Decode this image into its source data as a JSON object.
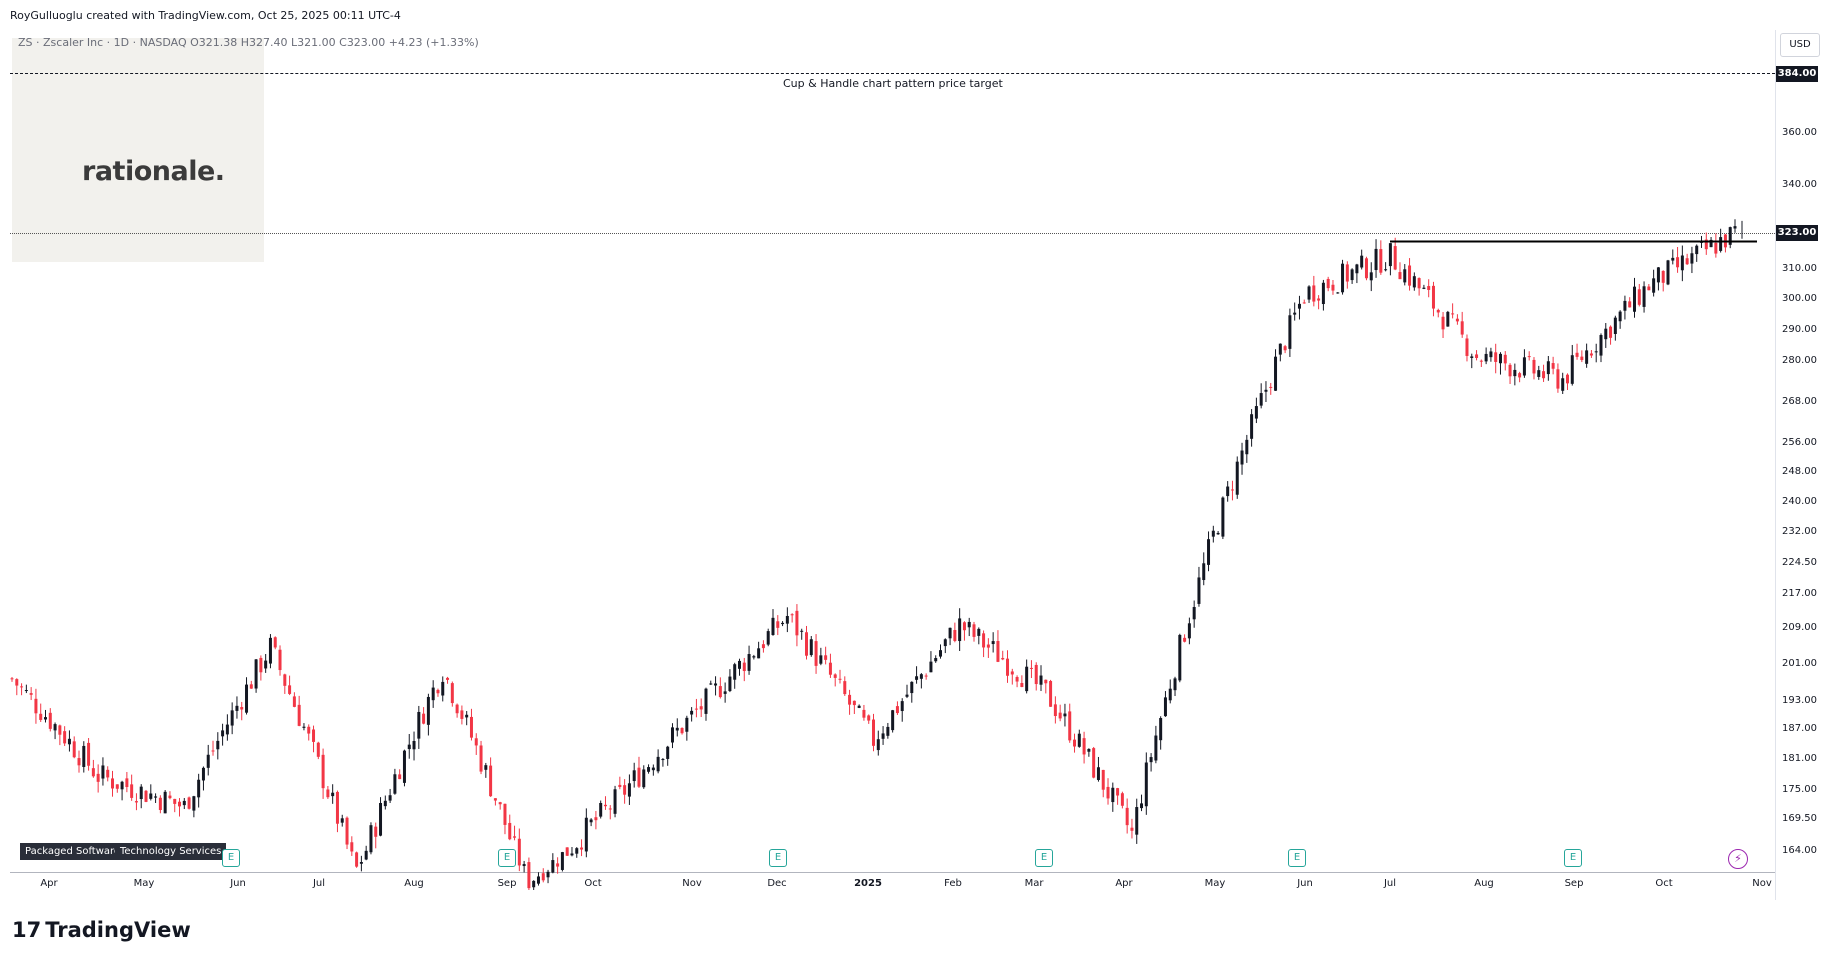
{
  "header": {
    "credit": "RoyGulluoglu created with TradingView.com, Oct 25, 2025 00:11 UTC-4",
    "symbol_line": "ZS · Zscaler Inc · 1D · NASDAQ  O321.38  H327.40  L321.00  C323.00  +4.23 (+1.33%)"
  },
  "logo": {
    "text": "rationale."
  },
  "currency": "USD",
  "annotation": {
    "target_text": "Cup & Handle chart pattern price target"
  },
  "sectors": [
    "Packaged Software",
    "Technology Services"
  ],
  "footer": {
    "brand": "TradingView",
    "brand_mark": "17"
  },
  "colors": {
    "up": "#131722",
    "down": "#f23645",
    "event": "#26a69a",
    "flash": "#9c27b0"
  },
  "events": [
    "E",
    "E",
    "E",
    "E",
    "E",
    "E"
  ],
  "flash_icon": "⚡",
  "chart_data": {
    "type": "candlestick",
    "title": "",
    "symbol": "ZS",
    "timeframe": "1D",
    "price_axis_labels": [
      "384.00",
      "360.00",
      "340.00",
      "323.00",
      "310.00",
      "300.00",
      "290.00",
      "280.00",
      "268.00",
      "256.00",
      "248.00",
      "240.00",
      "232.00",
      "224.50",
      "217.00",
      "209.00",
      "201.00",
      "193.00",
      "187.00",
      "181.00",
      "175.00",
      "169.50",
      "164.00"
    ],
    "time_axis_labels": [
      "Apr",
      "May",
      "Jun",
      "Jul",
      "Aug",
      "Sep",
      "Oct",
      "Nov",
      "Dec",
      "2025",
      "Feb",
      "Mar",
      "Apr",
      "May",
      "Jun",
      "Jul",
      "Aug",
      "Sep",
      "Oct",
      "Nov"
    ],
    "last_price": 323.0,
    "target_price": 384.0,
    "resistance_level": 320.0,
    "ohlc_last": {
      "open": 321.38,
      "high": 327.4,
      "low": 321.0,
      "close": 323.0,
      "change": 4.23,
      "change_pct": 1.33
    },
    "approx_closes": [
      {
        "date": "Apr",
        "close": 198
      },
      {
        "date": "May",
        "close": 178
      },
      {
        "date": "Jun",
        "close": 172
      },
      {
        "date": "Jul",
        "close": 205
      },
      {
        "date": "Aug",
        "close": 160
      },
      {
        "date": "Sep",
        "close": 200
      },
      {
        "date": "Sep (gap)",
        "close": 157
      },
      {
        "date": "Oct",
        "close": 173
      },
      {
        "date": "Nov",
        "close": 192
      },
      {
        "date": "Dec",
        "close": 212
      },
      {
        "date": "2025",
        "close": 185
      },
      {
        "date": "Feb",
        "close": 210
      },
      {
        "date": "Mar",
        "close": 195
      },
      {
        "date": "Apr",
        "close": 167
      },
      {
        "date": "May",
        "close": 235
      },
      {
        "date": "Jun",
        "close": 302
      },
      {
        "date": "Jul",
        "close": 315
      },
      {
        "date": "Aug",
        "close": 282
      },
      {
        "date": "Sep",
        "close": 275
      },
      {
        "date": "Oct",
        "close": 305
      },
      {
        "date": "Oct 24",
        "close": 323
      }
    ]
  }
}
